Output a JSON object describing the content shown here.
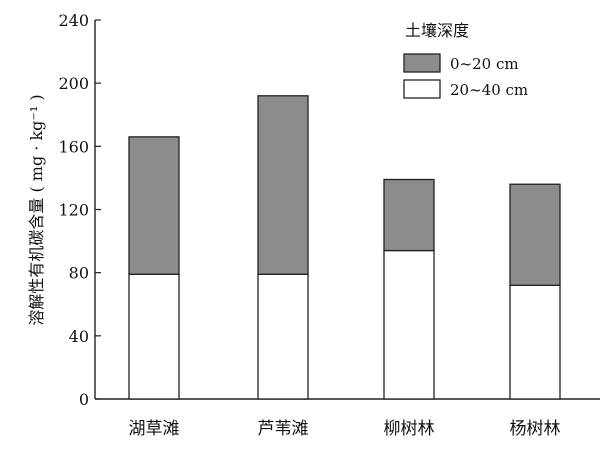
{
  "chart_data": {
    "type": "bar",
    "stacked": true,
    "categories": [
      "湖草滩",
      "芦苇滩",
      "柳树林",
      "杨树林"
    ],
    "series": [
      {
        "name": "20~40 cm",
        "values": [
          79,
          79,
          94,
          72
        ],
        "color": "#ffffff"
      },
      {
        "name": "0~20 cm",
        "values": [
          87,
          113,
          45,
          64
        ],
        "color": "#8c8c8c"
      }
    ],
    "yticks": [
      "0",
      "40",
      "80",
      "120",
      "160",
      "200",
      "240"
    ],
    "ylim": [
      0,
      240
    ],
    "ylabel": "溶解性有机碳含量 ( mg · kg⁻¹ )",
    "xlabel": "",
    "legend": {
      "title": "土壤深度",
      "position": "top-right"
    },
    "grid": false
  }
}
